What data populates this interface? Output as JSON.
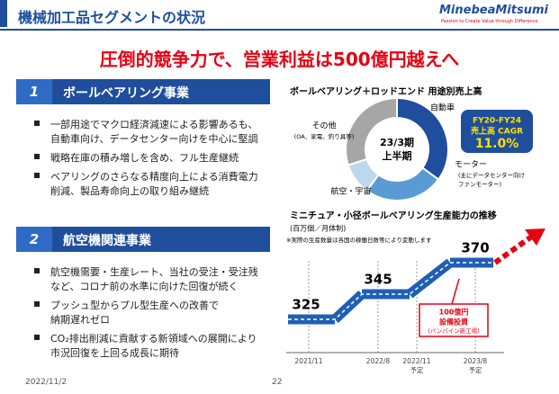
{
  "header": {
    "title": "機械加工品セグメントの状況",
    "logo": "MinebeaMitsumi",
    "tagline": "Passion to Create Value through Difference"
  },
  "headline": "圧倒的競争力で、営業利益は500億円越えへ",
  "sections": [
    {
      "number": "1",
      "title": "ボールベアリング事業",
      "bullets": [
        [
          "一部用途でマクロ経済減速による影響あるも、",
          "自動車向け、データセンター向けを中心に堅調"
        ],
        [
          "戦略在庫の積み増しを含め、フル生産継続"
        ],
        [
          "ベアリングのさらなる精度向上による消費電力",
          "削減、製品寿命向上の取り組み継続"
        ]
      ]
    },
    {
      "number": "2",
      "title": "航空機関連事業",
      "bullets": [
        [
          "航空機需要・生産レート、当社の受注・受注残",
          "など、コロナ前の水準に向けた回復が続く"
        ],
        [
          "プッシュ型からプル型生産への改善で",
          "納期遅れゼロ"
        ],
        [
          "CO₂排出削減に貢献する新領域への展開により",
          "市況回復を上回る成長に期待"
        ]
      ]
    }
  ],
  "donut": {
    "title": "ボールベアリング＋ロッドエンド 用途別売上高",
    "center": [
      "23/3期",
      "上半期"
    ],
    "segments": [
      {
        "name": "自動車",
        "value": 35,
        "color": "#1f4e9c"
      },
      {
        "name": "モーター",
        "sub": [
          "(主にデータセンター向け",
          "ファンモーター)"
        ],
        "value": 25,
        "color": "#5b9bd5"
      },
      {
        "name": "航空・宇宙",
        "value": 10,
        "color": "#bdd7ee"
      },
      {
        "name": "その他",
        "sub": [
          "(OA、家電、釣り具等)"
        ],
        "value": 30,
        "color": "#a6a6a6"
      }
    ],
    "badge": [
      "FY20-FY24",
      "売上高 CAGR",
      "11.0%"
    ]
  },
  "capacity": {
    "title": "ミニチュア・小径ボールベアリング生産能力の推移",
    "unit": "(百万個／月体制)",
    "note": "※実際の生産数量は各国の稼働日数等により変動します",
    "points": [
      {
        "date": "2021/11",
        "value": 325
      },
      {
        "date": "2022/8",
        "value": 345
      },
      {
        "date": "2022/11",
        "note": "予定"
      },
      {
        "date": "2023/8",
        "note": "予定",
        "value": 370
      }
    ],
    "callout": [
      "100億円",
      "設備投資",
      "(バンパイン新工場)"
    ]
  },
  "footer": {
    "date": "2022/11/2",
    "page": "22"
  }
}
